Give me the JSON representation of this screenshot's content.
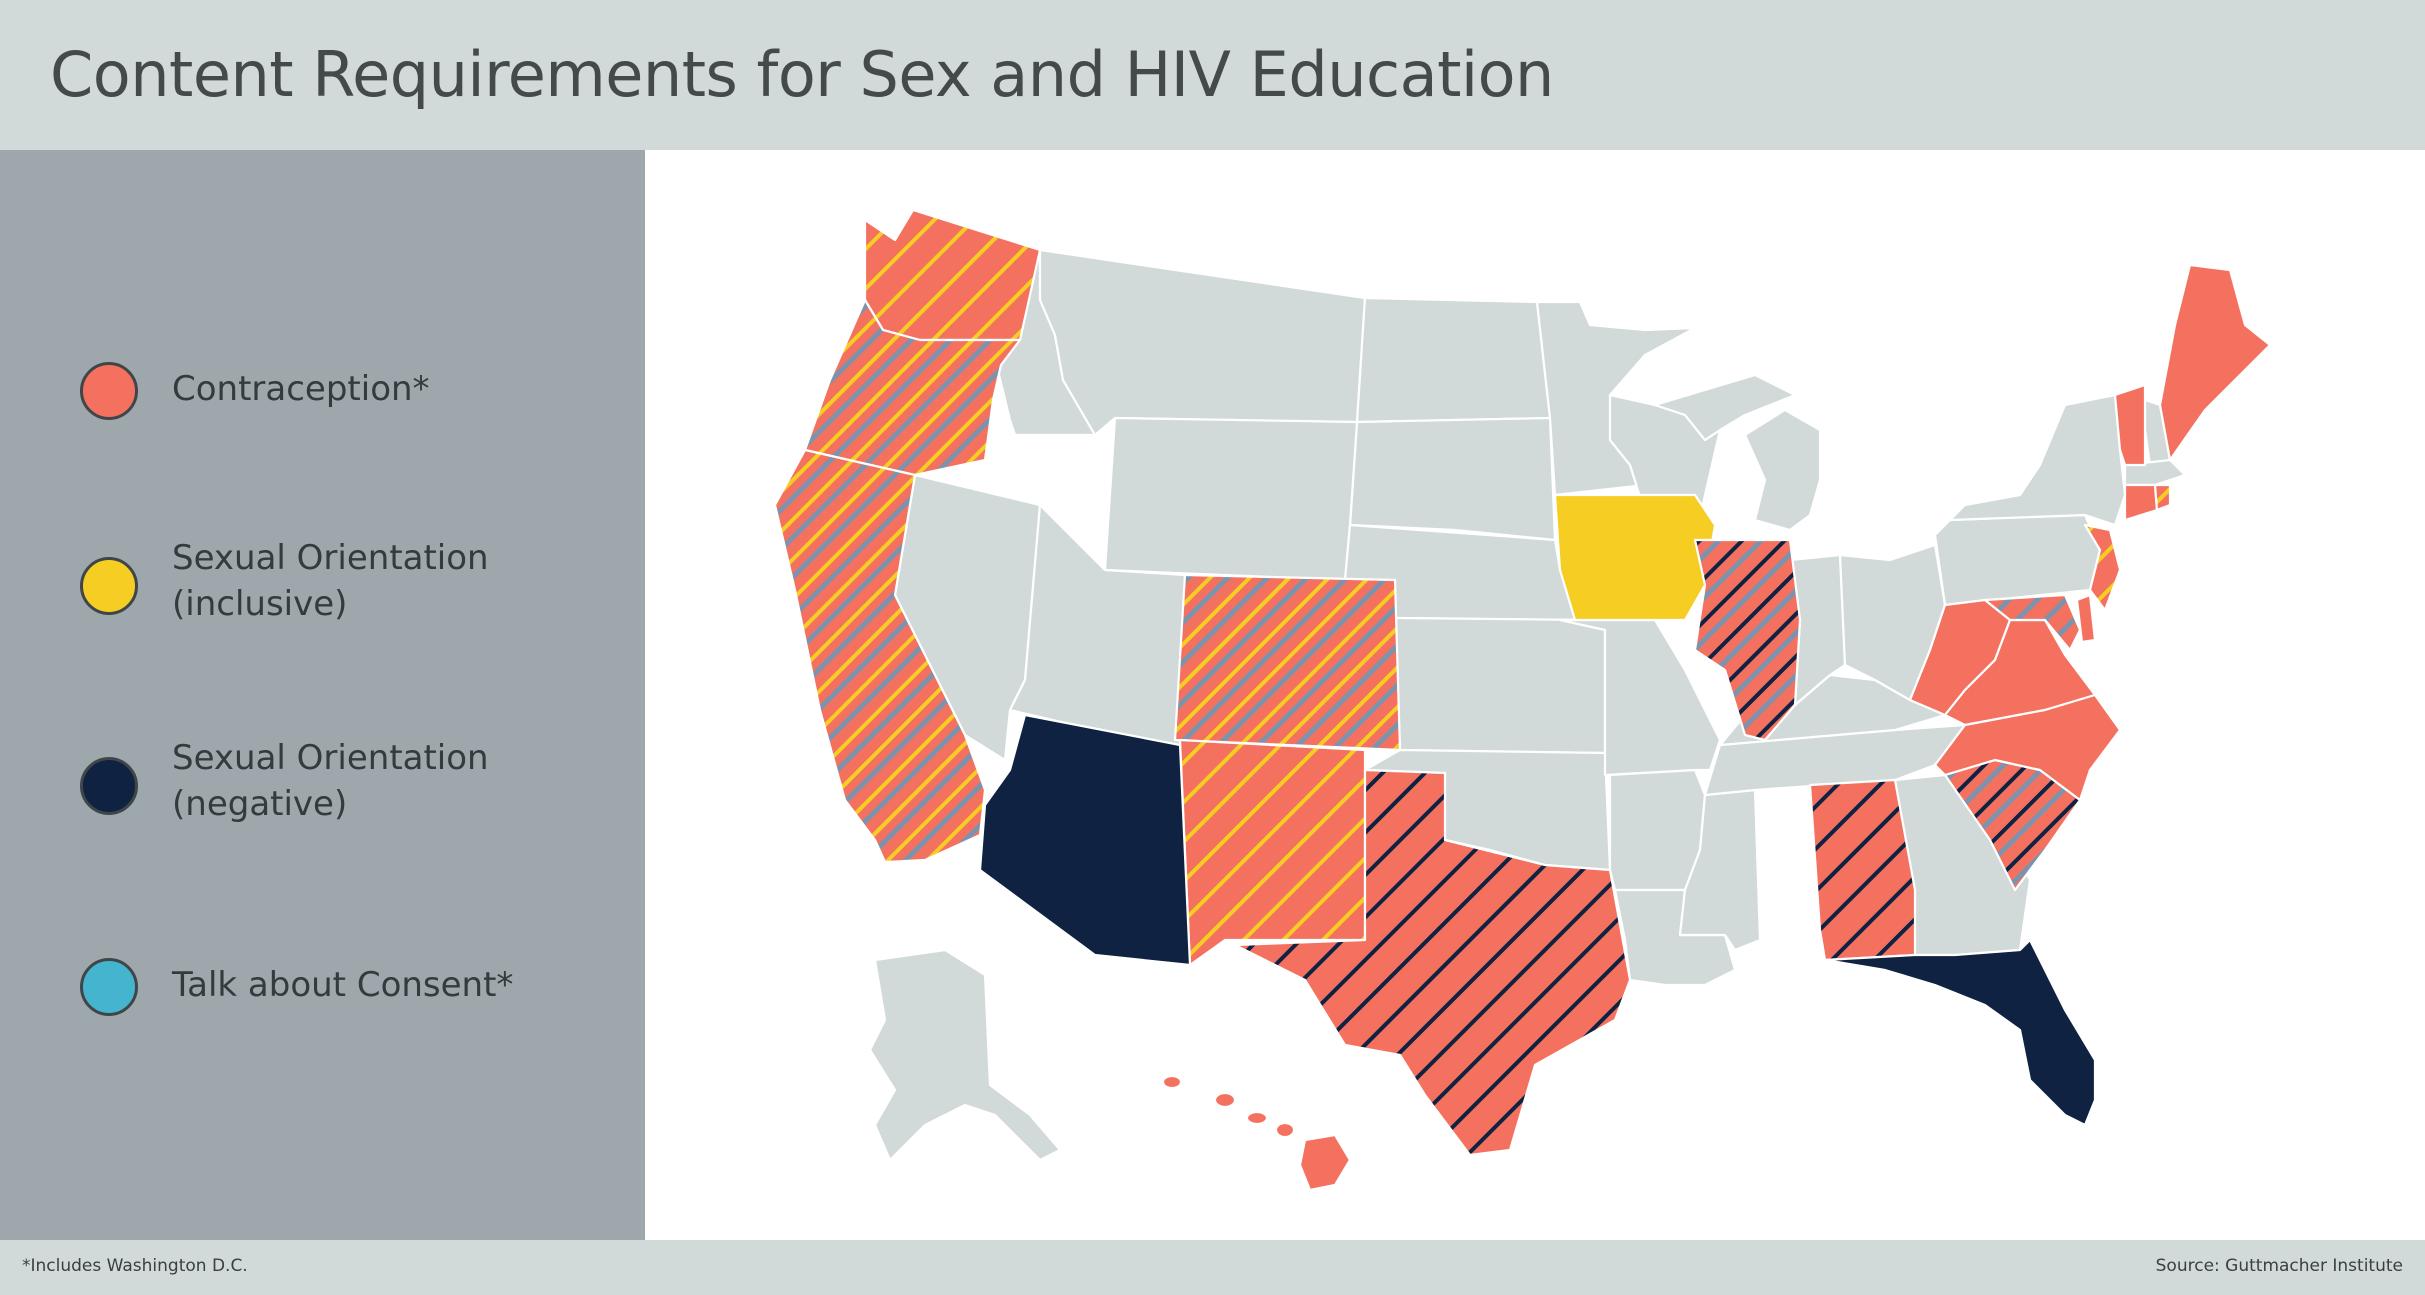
{
  "title": "Content Requirements for Sex and HIV Education",
  "legend": [
    {
      "label": "Contraception*",
      "color": "#f47160"
    },
    {
      "label": "Sexual Orientation\n(inclusive)",
      "color": "#f6cd22"
    },
    {
      "label": "Sexual Orientation\n(negative)",
      "color": "#0f2241"
    },
    {
      "label": "Talk about Consent*",
      "color": "#45b5cf"
    }
  ],
  "colors": {
    "contraception": "#f47160",
    "orientation_inclusive": "#f6cd22",
    "orientation_negative": "#0f2241",
    "consent": "#45b5cf",
    "no_requirement": "#d1dad9"
  },
  "footer": {
    "footnote": "*Includes Washington D.C.",
    "source": "Source: Guttmacher Institute"
  },
  "map_states": [
    {
      "state": "WA",
      "fill": "contraception",
      "pattern": "orientation_inclusive"
    },
    {
      "state": "OR",
      "fill": "contraception",
      "pattern": "orientation_inclusive + consent"
    },
    {
      "state": "CA",
      "fill": "contraception",
      "pattern": "orientation_inclusive + consent"
    },
    {
      "state": "CO",
      "fill": "contraception",
      "pattern": "orientation_inclusive + consent"
    },
    {
      "state": "NM",
      "fill": "contraception",
      "pattern": "orientation_inclusive"
    },
    {
      "state": "AZ",
      "fill": "orientation_negative",
      "pattern": "none"
    },
    {
      "state": "TX",
      "fill": "contraception",
      "pattern": "orientation_negative"
    },
    {
      "state": "IA",
      "fill": "orientation_inclusive",
      "pattern": "none"
    },
    {
      "state": "IL",
      "fill": "contraception",
      "pattern": "orientation_negative + consent"
    },
    {
      "state": "AL",
      "fill": "contraception",
      "pattern": "orientation_negative"
    },
    {
      "state": "SC",
      "fill": "contraception",
      "pattern": "orientation_negative + consent"
    },
    {
      "state": "FL",
      "fill": "orientation_negative",
      "pattern": "none"
    },
    {
      "state": "WV",
      "fill": "contraception",
      "pattern": "none"
    },
    {
      "state": "VA",
      "fill": "contraception",
      "pattern": "none"
    },
    {
      "state": "NC",
      "fill": "contraception",
      "pattern": "none"
    },
    {
      "state": "MD",
      "fill": "contraception",
      "pattern": "consent"
    },
    {
      "state": "DE",
      "fill": "contraception",
      "pattern": "none"
    },
    {
      "state": "NJ",
      "fill": "contraception",
      "pattern": "orientation_inclusive"
    },
    {
      "state": "CT",
      "fill": "contraception",
      "pattern": "none"
    },
    {
      "state": "RI",
      "fill": "contraception",
      "pattern": "orientation_inclusive"
    },
    {
      "state": "VT",
      "fill": "contraception",
      "pattern": "none"
    },
    {
      "state": "ME",
      "fill": "contraception",
      "pattern": "none"
    },
    {
      "state": "HI",
      "fill": "contraception",
      "pattern": "none"
    }
  ]
}
